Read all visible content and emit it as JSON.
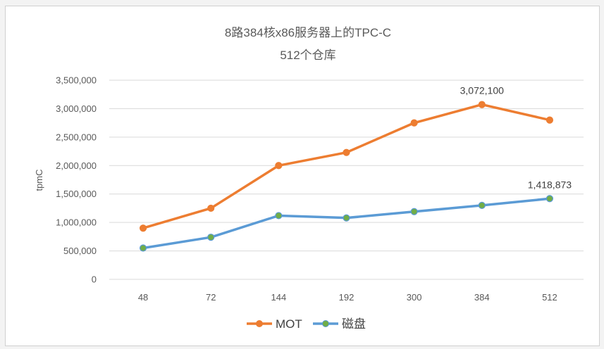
{
  "chart_data": {
    "type": "line",
    "title": "8路384核x86服务器上的TPC-C",
    "subtitle": "512个仓库",
    "xlabel": "",
    "ylabel": "tpmC",
    "categories": [
      "48",
      "72",
      "144",
      "192",
      "300",
      "384",
      "512"
    ],
    "ylim": [
      0,
      3500000
    ],
    "yticks": [
      0,
      500000,
      1000000,
      1500000,
      2000000,
      2500000,
      3000000,
      3500000
    ],
    "ytick_labels": [
      "0",
      "500,000",
      "1,000,000",
      "1,500,000",
      "2,000,000",
      "2,500,000",
      "3,000,000",
      "3,500,000"
    ],
    "grid": "horizontal",
    "legend": "bottom",
    "series": [
      {
        "name": "MOT",
        "color": "#ed7d31",
        "marker_color": "#ed7d31",
        "values": [
          900000,
          1250000,
          2000000,
          2230000,
          2750000,
          3072100,
          2800000
        ],
        "data_labels": {
          "5": "3,072,100"
        }
      },
      {
        "name": "磁盘",
        "color": "#5b9bd5",
        "marker_color": "#70ad47",
        "values": [
          550000,
          740000,
          1120000,
          1080000,
          1190000,
          1300000,
          1418873
        ],
        "data_labels": {
          "6": "1,418,873"
        }
      }
    ]
  }
}
